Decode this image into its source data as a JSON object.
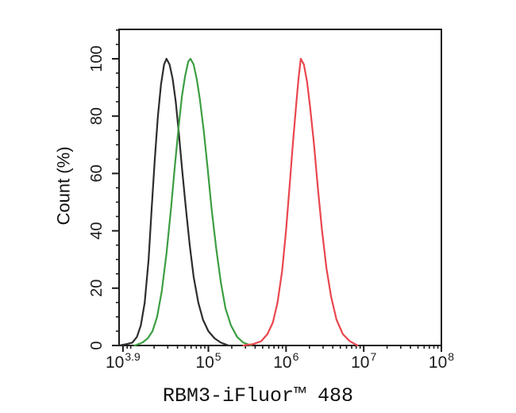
{
  "figure": {
    "xlabel": "RBM3-iFluor™ 488",
    "ylabel": "Count (%)",
    "background": "#ffffff",
    "axis_color": "#1a1a1a",
    "tick_label_color": "#1c1c1c"
  },
  "chart_data": {
    "type": "line",
    "description": "Flow cytometry histogram overlay: three fluorescence intensity distributions (black, green, red curves), counts normalized to % of max",
    "title": "",
    "xlabel": "RBM3-iFluor™ 488",
    "ylabel": "Count (%)",
    "grid": false,
    "legend": "none",
    "x_axis": {
      "scale": "log10",
      "range_log10": [
        3.85,
        8.0
      ],
      "major_ticks": [
        {
          "log10": 3.9,
          "base": "10",
          "exp": "3.9"
        },
        {
          "log10": 5.0,
          "base": "10",
          "exp": "5"
        },
        {
          "log10": 6.0,
          "base": "10",
          "exp": "6"
        },
        {
          "log10": 7.0,
          "base": "10",
          "exp": "7"
        },
        {
          "log10": 8.0,
          "base": "10",
          "exp": "8"
        }
      ],
      "minor_tick_decades": [
        3,
        4,
        5,
        6,
        7
      ],
      "extra_minor_ticks_log10": [
        4.0
      ]
    },
    "y_axis": {
      "range": [
        0,
        110.25
      ],
      "major_ticks": [
        0,
        20,
        40,
        60,
        80,
        100
      ],
      "minor_step": 5
    },
    "series": [
      {
        "name": "black",
        "color": "#2d2d2d",
        "peak_log10": 4.46,
        "peak_percent": 100,
        "points": [
          [
            3.855,
            0
          ],
          [
            3.95,
            0.5
          ],
          [
            4.02,
            1
          ],
          [
            4.08,
            3
          ],
          [
            4.13,
            7
          ],
          [
            4.18,
            15
          ],
          [
            4.23,
            30
          ],
          [
            4.27,
            48
          ],
          [
            4.31,
            65
          ],
          [
            4.35,
            80
          ],
          [
            4.39,
            91
          ],
          [
            4.43,
            98
          ],
          [
            4.46,
            100
          ],
          [
            4.5,
            98
          ],
          [
            4.54,
            93
          ],
          [
            4.58,
            85
          ],
          [
            4.62,
            74
          ],
          [
            4.66,
            62
          ],
          [
            4.71,
            48
          ],
          [
            4.76,
            35
          ],
          [
            4.81,
            24
          ],
          [
            4.87,
            15
          ],
          [
            4.93,
            9
          ],
          [
            5.0,
            5
          ],
          [
            5.08,
            2.5
          ],
          [
            5.16,
            1
          ],
          [
            5.26,
            0
          ]
        ]
      },
      {
        "name": "green",
        "color": "#3c9e42",
        "peak_log10": 4.77,
        "peak_percent": 100,
        "points": [
          [
            4.05,
            0
          ],
          [
            4.15,
            1
          ],
          [
            4.22,
            2.5
          ],
          [
            4.28,
            5
          ],
          [
            4.34,
            10
          ],
          [
            4.4,
            19
          ],
          [
            4.46,
            32
          ],
          [
            4.52,
            48
          ],
          [
            4.57,
            63
          ],
          [
            4.62,
            77
          ],
          [
            4.66,
            87
          ],
          [
            4.7,
            94
          ],
          [
            4.74,
            99
          ],
          [
            4.77,
            100
          ],
          [
            4.81,
            98
          ],
          [
            4.85,
            93
          ],
          [
            4.89,
            86
          ],
          [
            4.94,
            75
          ],
          [
            4.99,
            62
          ],
          [
            5.04,
            48
          ],
          [
            5.1,
            34
          ],
          [
            5.16,
            22
          ],
          [
            5.22,
            13
          ],
          [
            5.29,
            7
          ],
          [
            5.37,
            3
          ],
          [
            5.45,
            1
          ],
          [
            5.55,
            0
          ]
        ]
      },
      {
        "name": "red",
        "color": "#e9464e",
        "peak_log10": 6.19,
        "peak_percent": 100,
        "points": [
          [
            5.45,
            0
          ],
          [
            5.58,
            0.5
          ],
          [
            5.68,
            1.5
          ],
          [
            5.76,
            4
          ],
          [
            5.83,
            8
          ],
          [
            5.89,
            15
          ],
          [
            5.95,
            26
          ],
          [
            6.0,
            40
          ],
          [
            6.05,
            57
          ],
          [
            6.09,
            71
          ],
          [
            6.13,
            84
          ],
          [
            6.16,
            93
          ],
          [
            6.19,
            100
          ],
          [
            6.23,
            98
          ],
          [
            6.27,
            92
          ],
          [
            6.31,
            83
          ],
          [
            6.36,
            70
          ],
          [
            6.41,
            55
          ],
          [
            6.46,
            41
          ],
          [
            6.52,
            27
          ],
          [
            6.58,
            17
          ],
          [
            6.65,
            9
          ],
          [
            6.73,
            4
          ],
          [
            6.82,
            1.5
          ],
          [
            6.92,
            0
          ]
        ]
      }
    ]
  }
}
